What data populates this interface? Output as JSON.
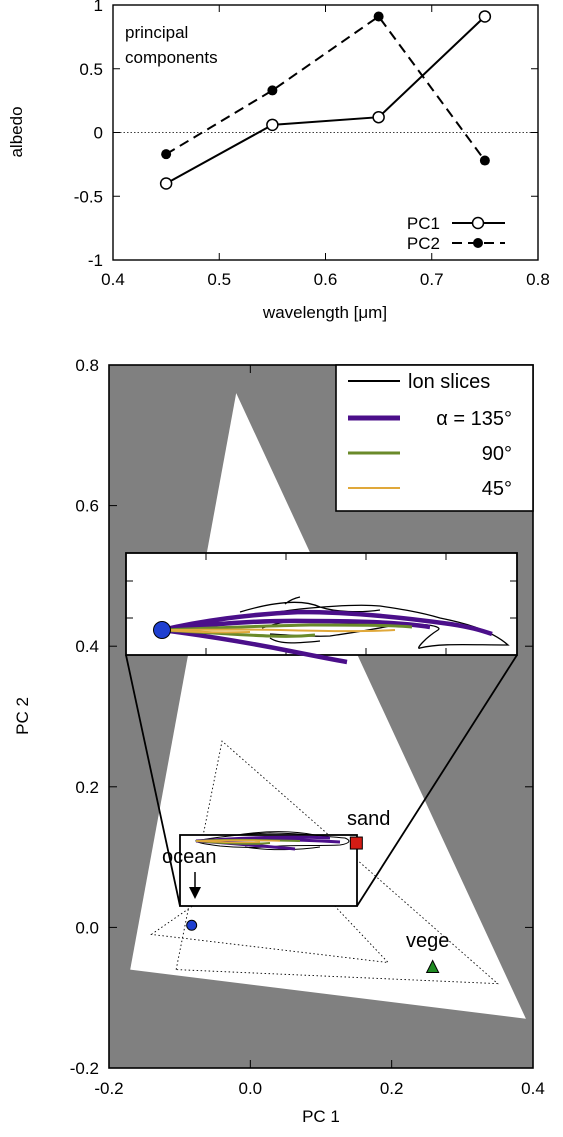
{
  "chart_data": [
    {
      "type": "line",
      "annotation": "principal\ncomponents",
      "xlabel": "wavelength [μm]",
      "ylabel": "albedo",
      "xlim": [
        0.4,
        0.8
      ],
      "ylim": [
        -1,
        1
      ],
      "x_ticks": [
        "0.4",
        "0.5",
        "0.6",
        "0.7",
        "0.8"
      ],
      "y_ticks": [
        "-1",
        "-0.5",
        "0",
        "0.5",
        "1"
      ],
      "zero_line": true,
      "legend_position": "bottom-right",
      "x": [
        0.45,
        0.55,
        0.65,
        0.75
      ],
      "series": [
        {
          "name": "PC1",
          "values": [
            -0.4,
            0.06,
            0.12,
            0.91
          ],
          "style": "solid",
          "marker": "open-circle"
        },
        {
          "name": "PC2",
          "values": [
            -0.17,
            0.33,
            0.91,
            -0.22
          ],
          "style": "dashed",
          "marker": "filled-circle"
        }
      ]
    },
    {
      "type": "scatter",
      "xlabel": "PC 1",
      "ylabel": "PC 2",
      "xlim": [
        -0.2,
        0.4
      ],
      "ylim": [
        -0.2,
        0.8
      ],
      "x_ticks": [
        "-0.2",
        "0.0",
        "0.2",
        "0.4"
      ],
      "y_ticks": [
        "-0.2",
        "0.0",
        "0.2",
        "0.4",
        "0.6",
        "0.8"
      ],
      "background_color": "#808080",
      "legend_position": "top-right",
      "legend": [
        {
          "label": "lon slices",
          "color": "#000000"
        },
        {
          "label": "α = 135°",
          "color": "#4b0f8a"
        },
        {
          "label": "90°",
          "color": "#6a8a2a"
        },
        {
          "label": "45°",
          "color": "#e0a83a"
        }
      ],
      "triangle": [
        [
          -0.17,
          -0.06
        ],
        [
          -0.02,
          0.76
        ],
        [
          0.39,
          -0.13
        ]
      ],
      "dotted_triangle_outer": [
        [
          -0.105,
          -0.06
        ],
        [
          -0.04,
          0.265
        ],
        [
          0.35,
          -0.08
        ]
      ],
      "dotted_triangle_inner": [
        [
          -0.14,
          -0.01
        ],
        [
          0.04,
          0.115
        ],
        [
          0.195,
          -0.05
        ]
      ],
      "points": [
        {
          "label": "sand",
          "x": 0.15,
          "y": 0.12,
          "color": "#d41c14",
          "marker": "square"
        },
        {
          "label": "vege",
          "x": 0.258,
          "y": -0.057,
          "color": "#1f8a22",
          "marker": "triangle"
        },
        {
          "label": "ocean",
          "x": -0.083,
          "y": 0.003,
          "color": "#1e3fd0",
          "marker": "circle"
        }
      ],
      "zoom_box": {
        "x": [
          -0.1,
          0.15
        ],
        "y": [
          -0.05,
          0.05
        ]
      }
    }
  ]
}
